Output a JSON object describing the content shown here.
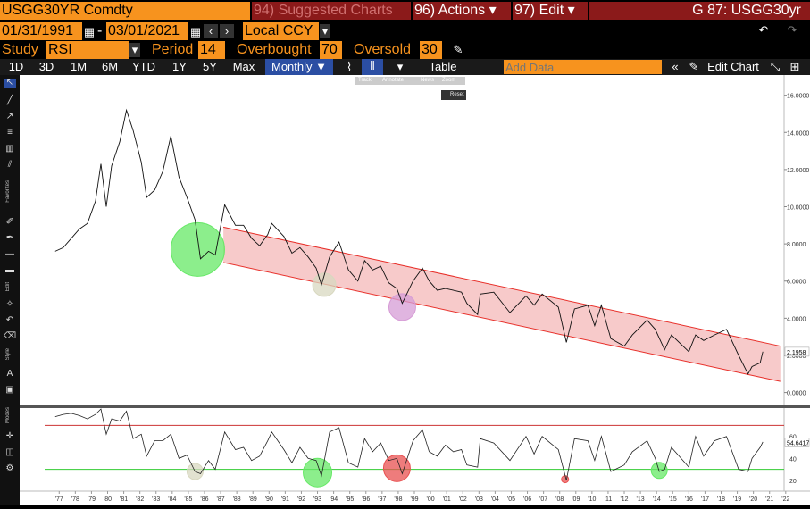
{
  "header": {
    "ticker": "USGG30YR Comdty",
    "suggested": "94) Suggested Charts",
    "actions": "96) Actions ▾",
    "edit": "97) Edit ▾",
    "title": "G 87: USGG30yr"
  },
  "dates": {
    "start": "01/31/1991",
    "end": "03/01/2021",
    "sep": "-",
    "currency": "Local CCY"
  },
  "study": {
    "study_label": "Study",
    "study_value": "RSI",
    "period_label": "Period",
    "period_value": "14",
    "overbought_label": "Overbought",
    "overbought_value": "70",
    "oversold_label": "Oversold",
    "oversold_value": "30"
  },
  "toolbar": {
    "ranges": [
      "1D",
      "3D",
      "1M",
      "6M",
      "YTD",
      "1Y",
      "5Y",
      "Max"
    ],
    "frequency": "Monthly ▼",
    "table": "Table",
    "add_data_placeholder": "Add Data",
    "edit_chart": "Edit Chart"
  },
  "mini_toolbar": {
    "items": [
      "Track",
      "Annotate",
      "News",
      "Zoom"
    ],
    "reset": "Reset"
  },
  "colors": {
    "orange": "#f7931e",
    "channel_fill": "#f4b8b8",
    "channel_line": "#e8302a",
    "rsi_overbought": "#cc3333",
    "rsi_oversold": "#33cc33"
  },
  "chart_data": [
    {
      "type": "line",
      "series": [
        {
          "values": [
            [
              "1977-04",
              7.6
            ],
            [
              "1977-10",
              7.8
            ],
            [
              "1978-04",
              8.3
            ],
            [
              "1978-10",
              8.8
            ],
            [
              "1979-04",
              9.1
            ],
            [
              "1979-10",
              10.3
            ],
            [
              "1980-02",
              12.3
            ],
            [
              "1980-06",
              10.0
            ],
            [
              "1980-10",
              12.2
            ],
            [
              "1981-04",
              13.5
            ],
            [
              "1981-09",
              15.2
            ],
            [
              "1982-02",
              14.1
            ],
            [
              "1982-08",
              12.4
            ],
            [
              "1982-12",
              10.5
            ],
            [
              "1983-06",
              10.9
            ],
            [
              "1983-12",
              11.9
            ],
            [
              "1984-06",
              13.8
            ],
            [
              "1984-12",
              11.6
            ],
            [
              "1985-06",
              10.5
            ],
            [
              "1985-12",
              9.3
            ],
            [
              "1986-04",
              7.2
            ],
            [
              "1986-10",
              7.6
            ],
            [
              "1987-03",
              7.4
            ],
            [
              "1987-10",
              10.1
            ],
            [
              "1988-06",
              9.0
            ],
            [
              "1988-12",
              9.0
            ],
            [
              "1989-06",
              8.3
            ],
            [
              "1989-12",
              7.9
            ],
            [
              "1990-06",
              8.5
            ],
            [
              "1990-09",
              9.1
            ],
            [
              "1991-06",
              8.4
            ],
            [
              "1991-12",
              7.5
            ],
            [
              "1992-06",
              7.8
            ],
            [
              "1992-12",
              7.3
            ],
            [
              "1993-06",
              6.7
            ],
            [
              "1993-10",
              5.8
            ],
            [
              "1994-04",
              7.3
            ],
            [
              "1994-11",
              8.1
            ],
            [
              "1995-06",
              6.6
            ],
            [
              "1996-01",
              6.0
            ],
            [
              "1996-06",
              7.1
            ],
            [
              "1996-12",
              6.6
            ],
            [
              "1997-06",
              6.8
            ],
            [
              "1997-12",
              5.9
            ],
            [
              "1998-06",
              5.6
            ],
            [
              "1998-10",
              4.8
            ],
            [
              "1999-06",
              6.0
            ],
            [
              "2000-01",
              6.7
            ],
            [
              "2000-06",
              6.0
            ],
            [
              "2000-12",
              5.5
            ],
            [
              "2001-06",
              5.6
            ],
            [
              "2001-12",
              5.5
            ],
            [
              "2002-06",
              5.4
            ],
            [
              "2002-10",
              4.8
            ],
            [
              "2003-06",
              4.2
            ],
            [
              "2003-08",
              5.3
            ],
            [
              "2004-06",
              5.4
            ],
            [
              "2005-06",
              4.3
            ],
            [
              "2006-06",
              5.2
            ],
            [
              "2006-12",
              4.7
            ],
            [
              "2007-06",
              5.3
            ],
            [
              "2008-06",
              4.6
            ],
            [
              "2008-12",
              2.7
            ],
            [
              "2009-06",
              4.5
            ],
            [
              "2010-04",
              4.7
            ],
            [
              "2010-09",
              3.6
            ],
            [
              "2011-02",
              4.7
            ],
            [
              "2011-09",
              2.9
            ],
            [
              "2012-07",
              2.5
            ],
            [
              "2013-01",
              3.1
            ],
            [
              "2013-12",
              3.9
            ],
            [
              "2014-06",
              3.4
            ],
            [
              "2015-01",
              2.3
            ],
            [
              "2015-06",
              3.1
            ],
            [
              "2016-07",
              2.2
            ],
            [
              "2016-12",
              3.1
            ],
            [
              "2017-06",
              2.8
            ],
            [
              "2018-02",
              3.1
            ],
            [
              "2018-11",
              3.4
            ],
            [
              "2019-08",
              2.0
            ],
            [
              "2020-03",
              1.0
            ],
            [
              "2020-06",
              1.4
            ],
            [
              "2020-12",
              1.6
            ],
            [
              "2021-02",
              2.2
            ]
          ]
        }
      ],
      "channel": {
        "upper": [
          [
            "1987-09",
            8.9
          ],
          [
            "2022-03",
            2.5
          ]
        ],
        "lower": [
          [
            "1987-09",
            7.0
          ],
          [
            "2022-03",
            0.6
          ]
        ]
      },
      "last_value": "2.1958",
      "yticks": [
        "16.0000",
        "14.0000",
        "12.0000",
        "10.0000",
        "8.0000",
        "6.0000",
        "4.0000",
        "2.0000",
        "0.0000"
      ],
      "ylim": [
        -0.5,
        16.8
      ],
      "highlight_circles": [
        {
          "x": "1986-02",
          "y": 7.7,
          "color": "#66e866"
        },
        {
          "x": "1993-12",
          "y": 5.8,
          "color": "#d8d8c0"
        },
        {
          "x": "1998-10",
          "y": 4.6,
          "color": "#d69cd6"
        }
      ]
    },
    {
      "type": "line",
      "study": "RSI",
      "yticks": [
        "60",
        "40",
        "20"
      ],
      "ylim": [
        15,
        85
      ],
      "last_value": "54.6417",
      "series": [
        {
          "values": [
            [
              "1977-04",
              78
            ],
            [
              "1977-10",
              80
            ],
            [
              "1978-04",
              81
            ],
            [
              "1978-10",
              79
            ],
            [
              "1979-04",
              76
            ],
            [
              "1979-10",
              80
            ],
            [
              "1980-02",
              85
            ],
            [
              "1980-06",
              62
            ],
            [
              "1980-10",
              76
            ],
            [
              "1981-04",
              74
            ],
            [
              "1981-09",
              83
            ],
            [
              "1982-02",
              58
            ],
            [
              "1982-08",
              62
            ],
            [
              "1982-12",
              42
            ],
            [
              "1983-06",
              56
            ],
            [
              "1983-12",
              56
            ],
            [
              "1984-06",
              62
            ],
            [
              "1984-12",
              40
            ],
            [
              "1985-06",
              43
            ],
            [
              "1985-12",
              28
            ],
            [
              "1986-04",
              26
            ],
            [
              "1986-10",
              38
            ],
            [
              "1987-03",
              30
            ],
            [
              "1987-10",
              64
            ],
            [
              "1988-06",
              48
            ],
            [
              "1988-12",
              50
            ],
            [
              "1989-06",
              38
            ],
            [
              "1989-12",
              42
            ],
            [
              "1990-06",
              56
            ],
            [
              "1990-09",
              64
            ],
            [
              "1991-06",
              48
            ],
            [
              "1991-12",
              36
            ],
            [
              "1992-06",
              50
            ],
            [
              "1992-12",
              40
            ],
            [
              "1993-06",
              38
            ],
            [
              "1993-10",
              24
            ],
            [
              "1994-04",
              64
            ],
            [
              "1994-11",
              68
            ],
            [
              "1995-06",
              36
            ],
            [
              "1996-01",
              32
            ],
            [
              "1996-06",
              58
            ],
            [
              "1996-12",
              46
            ],
            [
              "1997-06",
              54
            ],
            [
              "1997-12",
              38
            ],
            [
              "1998-06",
              40
            ],
            [
              "1998-10",
              26
            ],
            [
              "1999-06",
              56
            ],
            [
              "2000-01",
              66
            ],
            [
              "2000-06",
              46
            ],
            [
              "2000-12",
              42
            ],
            [
              "2001-06",
              52
            ],
            [
              "2001-12",
              46
            ],
            [
              "2002-06",
              48
            ],
            [
              "2002-10",
              34
            ],
            [
              "2003-06",
              32
            ],
            [
              "2003-08",
              58
            ],
            [
              "2004-06",
              54
            ],
            [
              "2005-06",
              38
            ],
            [
              "2006-06",
              60
            ],
            [
              "2006-12",
              44
            ],
            [
              "2007-06",
              60
            ],
            [
              "2008-06",
              48
            ],
            [
              "2008-12",
              20
            ],
            [
              "2009-06",
              58
            ],
            [
              "2010-04",
              56
            ],
            [
              "2010-09",
              38
            ],
            [
              "2011-02",
              60
            ],
            [
              "2011-09",
              28
            ],
            [
              "2012-07",
              34
            ],
            [
              "2013-01",
              46
            ],
            [
              "2013-12",
              56
            ],
            [
              "2014-06",
              40
            ],
            [
              "2014-09",
              28
            ],
            [
              "2015-01",
              30
            ],
            [
              "2015-06",
              50
            ],
            [
              "2016-07",
              32
            ],
            [
              "2016-12",
              60
            ],
            [
              "2017-06",
              42
            ],
            [
              "2018-02",
              56
            ],
            [
              "2018-11",
              60
            ],
            [
              "2019-08",
              30
            ],
            [
              "2020-03",
              28
            ],
            [
              "2020-06",
              40
            ],
            [
              "2020-12",
              50
            ],
            [
              "2021-02",
              55
            ]
          ]
        }
      ],
      "levels": [
        {
          "value": 70,
          "color": "#cc3333"
        },
        {
          "value": 30,
          "color": "#33cc33"
        }
      ],
      "highlight_circles": [
        {
          "x": "1985-12",
          "y": 28,
          "color": "#d8d8c0"
        },
        {
          "x": "1993-07",
          "y": 27,
          "color": "#66e866"
        },
        {
          "x": "1998-06",
          "y": 31,
          "color": "#e85050"
        },
        {
          "x": "2008-11",
          "y": 21,
          "color": "#e85050"
        },
        {
          "x": "2014-09",
          "y": 29,
          "color": "#66e866"
        }
      ]
    }
  ],
  "x_axis": {
    "ticks": [
      "'77",
      "'78",
      "'79",
      "'80",
      "'81",
      "'82",
      "'83",
      "'84",
      "'85",
      "'86",
      "'87",
      "'88",
      "'89",
      "'90",
      "'91",
      "'92",
      "'93",
      "'94",
      "'95",
      "'96",
      "'97",
      "'98",
      "'99",
      "'00",
      "'01",
      "'02",
      "'03",
      "'04",
      "'05",
      "'06",
      "'07",
      "'08",
      "'09",
      "'10",
      "'11",
      "'12",
      "'13",
      "'14",
      "'15",
      "'16",
      "'17",
      "'18",
      "'19",
      "'20",
      "'21",
      "'22"
    ]
  },
  "sidebar": {
    "favorites": "Favorites",
    "edit": "Edit",
    "style": "Style",
    "modes": "Modes"
  }
}
